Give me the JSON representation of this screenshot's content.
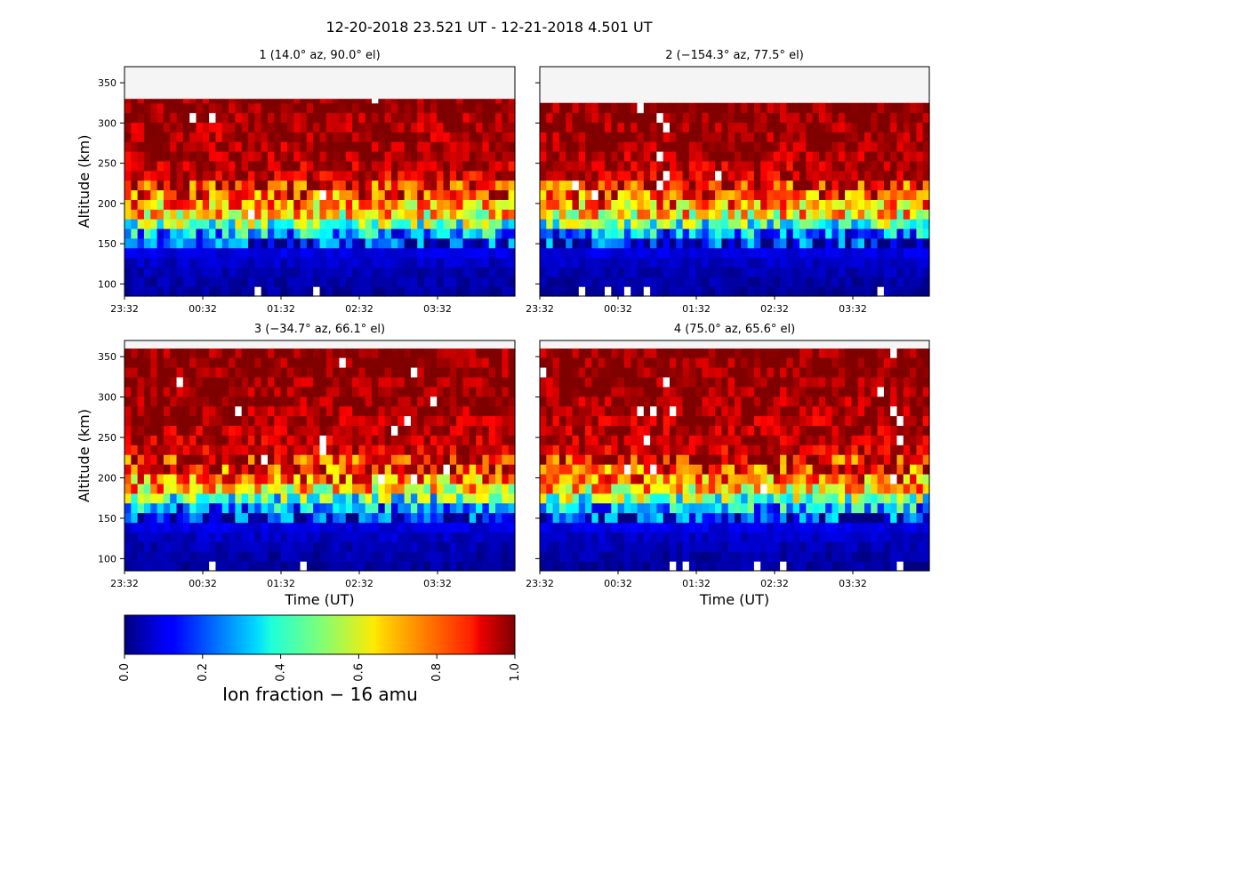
{
  "figure": {
    "title": "12-20-2018 23.521 UT - 12-21-2018 4.501 UT",
    "xlabel": "Time (UT)",
    "ylabel": "Altitude (km)"
  },
  "colorbar": {
    "label": "Ion fraction  − 16 amu",
    "colormap": "jet",
    "range": [
      0.0,
      1.0
    ],
    "ticks": [
      "0.0",
      "0.2",
      "0.4",
      "0.6",
      "0.8",
      "1.0"
    ]
  },
  "chart_data": [
    {
      "type": "heatmap",
      "title": "1 (14.0° az, 90.0° el)",
      "xlabel": "",
      "ylabel": "Altitude (km)",
      "x_ticks": [
        "23:32",
        "00:32",
        "01:32",
        "02:32",
        "03:32"
      ],
      "y_ticks": [
        100,
        150,
        200,
        250,
        300,
        350
      ],
      "ylim": [
        85,
        370
      ],
      "top_of_data_km": 330,
      "profile": [
        {
          "alt": 95,
          "value": 0.03
        },
        {
          "alt": 115,
          "value": 0.05
        },
        {
          "alt": 135,
          "value": 0.08
        },
        {
          "alt": 155,
          "value": 0.16
        },
        {
          "alt": 173,
          "value": 0.45
        },
        {
          "alt": 190,
          "value": 0.68
        },
        {
          "alt": 215,
          "value": 0.84
        },
        {
          "alt": 240,
          "value": 0.93
        },
        {
          "alt": 265,
          "value": 0.97
        },
        {
          "alt": 293,
          "value": 0.96
        },
        {
          "alt": 320,
          "value": 1.0
        }
      ]
    },
    {
      "type": "heatmap",
      "title": "2 (−154.3° az, 77.5° el)",
      "xlabel": "",
      "ylabel": "",
      "x_ticks": [
        "23:32",
        "00:32",
        "01:32",
        "02:32",
        "03:32"
      ],
      "y_ticks": [
        100,
        150,
        200,
        250,
        300,
        350
      ],
      "ylim": [
        85,
        370
      ],
      "top_of_data_km": 325,
      "profile": [
        {
          "alt": 95,
          "value": 0.03
        },
        {
          "alt": 115,
          "value": 0.05
        },
        {
          "alt": 135,
          "value": 0.08
        },
        {
          "alt": 155,
          "value": 0.14
        },
        {
          "alt": 173,
          "value": 0.42
        },
        {
          "alt": 188,
          "value": 0.66
        },
        {
          "alt": 210,
          "value": 0.82
        },
        {
          "alt": 235,
          "value": 0.93
        },
        {
          "alt": 262,
          "value": 0.97
        },
        {
          "alt": 290,
          "value": 0.99
        },
        {
          "alt": 315,
          "value": 1.0
        }
      ]
    },
    {
      "type": "heatmap",
      "title": "3 (−34.7° az, 66.1° el)",
      "xlabel": "Time (UT)",
      "ylabel": "Altitude (km)",
      "x_ticks": [
        "23:32",
        "00:32",
        "01:32",
        "02:32",
        "03:32"
      ],
      "y_ticks": [
        100,
        150,
        200,
        250,
        300,
        350
      ],
      "ylim": [
        85,
        370
      ],
      "top_of_data_km": 360,
      "profile": [
        {
          "alt": 95,
          "value": 0.03
        },
        {
          "alt": 115,
          "value": 0.05
        },
        {
          "alt": 135,
          "value": 0.08
        },
        {
          "alt": 155,
          "value": 0.15
        },
        {
          "alt": 173,
          "value": 0.4
        },
        {
          "alt": 188,
          "value": 0.68
        },
        {
          "alt": 210,
          "value": 0.84
        },
        {
          "alt": 235,
          "value": 0.93
        },
        {
          "alt": 262,
          "value": 0.96
        },
        {
          "alt": 290,
          "value": 0.98
        },
        {
          "alt": 330,
          "value": 1.0
        }
      ]
    },
    {
      "type": "heatmap",
      "title": "4 (75.0° az, 65.6° el)",
      "xlabel": "Time (UT)",
      "ylabel": "",
      "x_ticks": [
        "23:32",
        "00:32",
        "01:32",
        "02:32",
        "03:32"
      ],
      "y_ticks": [
        100,
        150,
        200,
        250,
        300,
        350
      ],
      "ylim": [
        85,
        370
      ],
      "top_of_data_km": 360,
      "profile": [
        {
          "alt": 95,
          "value": 0.03
        },
        {
          "alt": 115,
          "value": 0.05
        },
        {
          "alt": 135,
          "value": 0.08
        },
        {
          "alt": 155,
          "value": 0.18
        },
        {
          "alt": 173,
          "value": 0.45
        },
        {
          "alt": 188,
          "value": 0.68
        },
        {
          "alt": 210,
          "value": 0.84
        },
        {
          "alt": 235,
          "value": 0.92
        },
        {
          "alt": 262,
          "value": 0.95
        },
        {
          "alt": 290,
          "value": 0.97
        },
        {
          "alt": 330,
          "value": 1.0
        }
      ]
    }
  ]
}
